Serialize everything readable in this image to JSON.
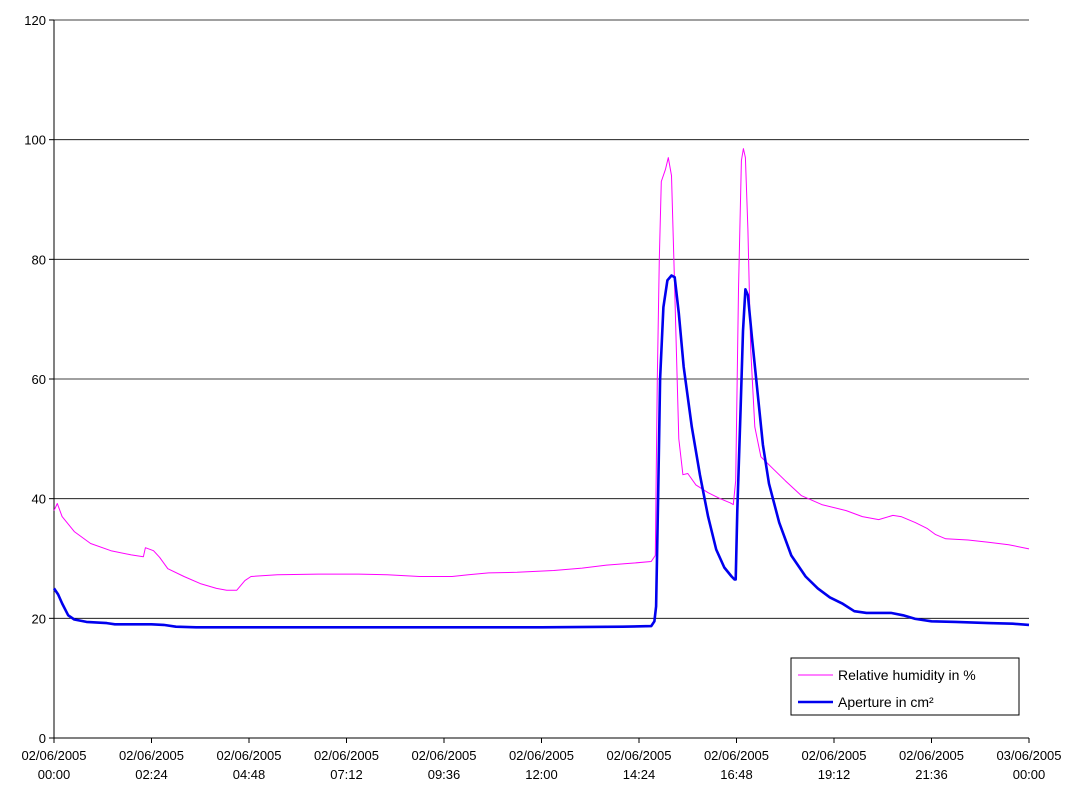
{
  "chart_data": {
    "type": "line",
    "title": "",
    "xlabel": "",
    "ylabel": "",
    "ylim": [
      0,
      120
    ],
    "yticks": [
      0,
      20,
      40,
      60,
      80,
      100,
      120
    ],
    "y_tick_labels": [
      "0",
      "20",
      "40",
      "60",
      "80",
      "100",
      "120"
    ],
    "xlim_hours": [
      0,
      24
    ],
    "grid": "horizontal",
    "legend_placement": "bottom-right",
    "x_ticks": [
      {
        "hours": 0,
        "date": "02/06/2005",
        "time": "00:00"
      },
      {
        "hours": 2.4,
        "date": "02/06/2005",
        "time": "02:24"
      },
      {
        "hours": 4.8,
        "date": "02/06/2005",
        "time": "04:48"
      },
      {
        "hours": 7.2,
        "date": "02/06/2005",
        "time": "07:12"
      },
      {
        "hours": 9.6,
        "date": "02/06/2005",
        "time": "09:36"
      },
      {
        "hours": 12,
        "date": "02/06/2005",
        "time": "12:00"
      },
      {
        "hours": 14.4,
        "date": "02/06/2005",
        "time": "14:24"
      },
      {
        "hours": 16.8,
        "date": "02/06/2005",
        "time": "16:48"
      },
      {
        "hours": 19.2,
        "date": "02/06/2005",
        "time": "19:12"
      },
      {
        "hours": 21.6,
        "date": "02/06/2005",
        "time": "21:36"
      },
      {
        "hours": 24,
        "date": "03/06/2005",
        "time": "00:00"
      }
    ],
    "series": [
      {
        "name": "Relative humidity in %",
        "color": "#ff00ff",
        "line_width": 1,
        "points": [
          [
            0,
            38
          ],
          [
            0.08,
            39.2
          ],
          [
            0.2,
            37
          ],
          [
            0.5,
            34.5
          ],
          [
            0.9,
            32.5
          ],
          [
            1.4,
            31.3
          ],
          [
            1.9,
            30.6
          ],
          [
            2.2,
            30.3
          ],
          [
            2.25,
            31.8
          ],
          [
            2.45,
            31.3
          ],
          [
            2.6,
            30.2
          ],
          [
            2.8,
            28.3
          ],
          [
            3.2,
            27
          ],
          [
            3.6,
            25.8
          ],
          [
            4.0,
            25
          ],
          [
            4.25,
            24.7
          ],
          [
            4.5,
            24.7
          ],
          [
            4.7,
            26.3
          ],
          [
            4.85,
            27.0
          ],
          [
            5.5,
            27.3
          ],
          [
            6.5,
            27.4
          ],
          [
            7.5,
            27.4
          ],
          [
            8.2,
            27.3
          ],
          [
            9.0,
            27.0
          ],
          [
            9.8,
            27.0
          ],
          [
            10.2,
            27.3
          ],
          [
            10.7,
            27.6
          ],
          [
            11.4,
            27.7
          ],
          [
            12.3,
            28.0
          ],
          [
            13.0,
            28.4
          ],
          [
            13.6,
            28.9
          ],
          [
            14.2,
            29.2
          ],
          [
            14.7,
            29.5
          ],
          [
            14.8,
            30.5
          ],
          [
            14.85,
            60
          ],
          [
            14.9,
            80
          ],
          [
            14.95,
            93
          ],
          [
            15.05,
            95
          ],
          [
            15.12,
            97
          ],
          [
            15.2,
            94
          ],
          [
            15.28,
            75
          ],
          [
            15.38,
            50
          ],
          [
            15.48,
            44
          ],
          [
            15.6,
            44.2
          ],
          [
            15.8,
            42.3
          ],
          [
            16.1,
            41
          ],
          [
            16.4,
            40
          ],
          [
            16.65,
            39.3
          ],
          [
            16.72,
            39
          ],
          [
            16.78,
            43
          ],
          [
            16.85,
            75
          ],
          [
            16.92,
            96.5
          ],
          [
            16.97,
            98.5
          ],
          [
            17.02,
            97
          ],
          [
            17.08,
            85
          ],
          [
            17.15,
            65
          ],
          [
            17.25,
            52
          ],
          [
            17.4,
            47
          ],
          [
            17.7,
            45
          ],
          [
            18.0,
            43
          ],
          [
            18.4,
            40.5
          ],
          [
            18.9,
            39
          ],
          [
            19.5,
            38
          ],
          [
            19.9,
            37
          ],
          [
            20.3,
            36.5
          ],
          [
            20.65,
            37.2
          ],
          [
            20.85,
            37
          ],
          [
            21.2,
            36
          ],
          [
            21.5,
            35
          ],
          [
            21.7,
            34
          ],
          [
            21.95,
            33.3
          ],
          [
            22.5,
            33.1
          ],
          [
            23.0,
            32.7
          ],
          [
            23.5,
            32.3
          ],
          [
            24,
            31.6
          ]
        ]
      },
      {
        "name": "Aperture in cm²",
        "color": "#0000ee",
        "line_width": 2.6,
        "points": [
          [
            0,
            25
          ],
          [
            0.1,
            24
          ],
          [
            0.2,
            22.5
          ],
          [
            0.35,
            20.5
          ],
          [
            0.5,
            19.8
          ],
          [
            0.8,
            19.4
          ],
          [
            1.3,
            19.2
          ],
          [
            1.5,
            19.0
          ],
          [
            2.4,
            19.0
          ],
          [
            2.7,
            18.9
          ],
          [
            3.0,
            18.6
          ],
          [
            3.5,
            18.5
          ],
          [
            6.0,
            18.5
          ],
          [
            9.0,
            18.5
          ],
          [
            12.0,
            18.5
          ],
          [
            14.0,
            18.6
          ],
          [
            14.7,
            18.7
          ],
          [
            14.78,
            19.5
          ],
          [
            14.82,
            22
          ],
          [
            14.87,
            40
          ],
          [
            14.92,
            60
          ],
          [
            15.0,
            72
          ],
          [
            15.1,
            76.5
          ],
          [
            15.2,
            77.3
          ],
          [
            15.28,
            77
          ],
          [
            15.38,
            71
          ],
          [
            15.5,
            62
          ],
          [
            15.7,
            52
          ],
          [
            15.9,
            44
          ],
          [
            16.1,
            37
          ],
          [
            16.3,
            31.5
          ],
          [
            16.5,
            28.5
          ],
          [
            16.68,
            27
          ],
          [
            16.75,
            26.5
          ],
          [
            16.78,
            26.5
          ],
          [
            16.82,
            38
          ],
          [
            16.9,
            55
          ],
          [
            16.96,
            68
          ],
          [
            17.02,
            75
          ],
          [
            17.08,
            74
          ],
          [
            17.18,
            67
          ],
          [
            17.3,
            59
          ],
          [
            17.45,
            49
          ],
          [
            17.6,
            42.5
          ],
          [
            17.85,
            36
          ],
          [
            18.15,
            30.5
          ],
          [
            18.5,
            27
          ],
          [
            18.8,
            25
          ],
          [
            19.1,
            23.5
          ],
          [
            19.4,
            22.5
          ],
          [
            19.7,
            21.2
          ],
          [
            20.0,
            20.9
          ],
          [
            20.6,
            20.9
          ],
          [
            20.9,
            20.5
          ],
          [
            21.2,
            19.9
          ],
          [
            21.6,
            19.5
          ],
          [
            22.2,
            19.4
          ],
          [
            23.0,
            19.2
          ],
          [
            23.6,
            19.1
          ],
          [
            24,
            18.9
          ]
        ]
      }
    ]
  }
}
